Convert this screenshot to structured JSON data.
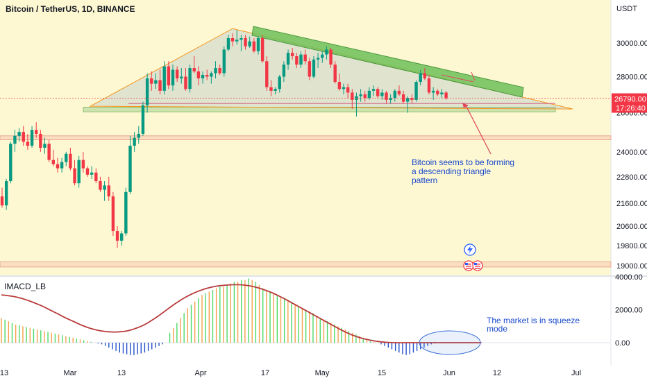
{
  "header": {
    "symbol": "Bitcoin / TetherUS, 1D, BINANCE",
    "currency": "USDT"
  },
  "price_badge": {
    "price": "26790.00",
    "countdown": "17:26:40",
    "color": "#f23645"
  },
  "indicator": {
    "name": "IMACD_LB"
  },
  "annotations": {
    "triangle_note": [
      "Bitcoin seems to be forming",
      "a descending triangle",
      "pattern"
    ],
    "squeeze_note": [
      "The market is in squeeze",
      "mode"
    ]
  },
  "colors": {
    "background_zone": "#fdf8d2",
    "up_candle": "#089981",
    "down_candle": "#f23645",
    "triangle_line": "#f7931a",
    "upper_trend_band": "#6fbf5a",
    "annotation_text": "#1848cc",
    "hist_green": "#4cd964",
    "hist_orange": "#f5a04a",
    "hist_blue": "#2150c8",
    "signal_line": "#b83a3a"
  },
  "chart_data": [
    {
      "type": "candlestick",
      "title": "Bitcoin / TetherUS, 1D, BINANCE",
      "ylabel": "USDT",
      "yscale": "log",
      "ylim": [
        18950,
        32500
      ],
      "x_ticks": [
        "13",
        "Mar",
        "13",
        "Apr",
        "17",
        "May",
        "15",
        "Jun",
        "12",
        "Jul"
      ],
      "y_ticks": [
        19000,
        19800,
        20600,
        21600,
        22800,
        24000,
        26000,
        28000,
        30000
      ],
      "y_tick_labels": [
        "19000.00",
        "19800.00",
        "20600.00",
        "21600.00",
        "22800.00",
        "24000.00",
        "26000.00",
        "28000.00",
        "30000.00"
      ],
      "last_price": 26790,
      "candles_ohlc": [
        [
          21900,
          22300,
          21400,
          21500
        ],
        [
          21500,
          22700,
          21300,
          22600
        ],
        [
          22600,
          24500,
          22500,
          24400
        ],
        [
          24400,
          25100,
          24000,
          24800
        ],
        [
          24800,
          25200,
          24500,
          25000
        ],
        [
          25000,
          25300,
          24300,
          24500
        ],
        [
          24500,
          24900,
          24100,
          24300
        ],
        [
          24300,
          25300,
          24200,
          25100
        ],
        [
          25100,
          25500,
          24700,
          24900
        ],
        [
          24900,
          25100,
          24000,
          24200
        ],
        [
          24200,
          24700,
          23900,
          24400
        ],
        [
          24400,
          24600,
          23500,
          23600
        ],
        [
          23600,
          24100,
          23300,
          23400
        ],
        [
          23400,
          23700,
          23000,
          23200
        ],
        [
          23200,
          23700,
          23000,
          23500
        ],
        [
          23500,
          24000,
          23300,
          23900
        ],
        [
          23900,
          24200,
          23100,
          23200
        ],
        [
          23200,
          23600,
          22400,
          22500
        ],
        [
          22500,
          23800,
          22300,
          23600
        ],
        [
          23600,
          24000,
          23000,
          23200
        ],
        [
          23200,
          23300,
          22800,
          22900
        ],
        [
          22900,
          23300,
          22700,
          23000
        ],
        [
          23000,
          23200,
          22500,
          22600
        ],
        [
          22600,
          22800,
          22100,
          22200
        ],
        [
          22200,
          22600,
          21700,
          22400
        ],
        [
          22400,
          22800,
          21700,
          21900
        ],
        [
          21900,
          22100,
          20200,
          20400
        ],
        [
          20400,
          20600,
          19700,
          20000
        ],
        [
          20000,
          20400,
          19800,
          20300
        ],
        [
          20300,
          22300,
          20200,
          22100
        ],
        [
          22100,
          24800,
          22000,
          24300
        ],
        [
          24300,
          25000,
          24000,
          24700
        ],
        [
          24700,
          25300,
          24400,
          24900
        ],
        [
          24900,
          26600,
          24800,
          26400
        ],
        [
          26400,
          28200,
          26000,
          27900
        ],
        [
          27900,
          28300,
          27200,
          27600
        ],
        [
          27600,
          28200,
          27300,
          27800
        ],
        [
          27800,
          28400,
          27000,
          27200
        ],
        [
          27200,
          28900,
          27000,
          28600
        ],
        [
          28600,
          28900,
          27300,
          27500
        ],
        [
          27500,
          28700,
          27200,
          28400
        ],
        [
          28400,
          28600,
          27700,
          27900
        ],
        [
          27900,
          28500,
          27600,
          28000
        ],
        [
          28000,
          28500,
          27200,
          27300
        ],
        [
          27300,
          28700,
          27100,
          28500
        ],
        [
          28500,
          29200,
          28200,
          28300
        ],
        [
          28300,
          28600,
          27500,
          27900
        ],
        [
          27900,
          28300,
          27600,
          28100
        ],
        [
          28100,
          28400,
          27800,
          28000
        ],
        [
          28000,
          28300,
          27600,
          28200
        ],
        [
          28200,
          28900,
          27900,
          28500
        ],
        [
          28500,
          28700,
          28100,
          28200
        ],
        [
          28200,
          29800,
          28000,
          29600
        ],
        [
          29600,
          30500,
          29500,
          30300
        ],
        [
          30300,
          30600,
          29800,
          30100
        ],
        [
          30100,
          30800,
          29900,
          30200
        ],
        [
          30200,
          30500,
          29500,
          30300
        ],
        [
          30300,
          30500,
          29600,
          29800
        ],
        [
          29800,
          30400,
          29700,
          30100
        ],
        [
          30100,
          30300,
          29400,
          29500
        ],
        [
          29500,
          30400,
          29300,
          30300
        ],
        [
          30300,
          30500,
          28800,
          28900
        ],
        [
          28900,
          29200,
          27200,
          27400
        ],
        [
          27400,
          27800,
          26900,
          27200
        ],
        [
          27200,
          27400,
          27000,
          27300
        ],
        [
          27300,
          28100,
          27100,
          28000
        ],
        [
          28000,
          28900,
          27700,
          28700
        ],
        [
          28700,
          29600,
          28400,
          29400
        ],
        [
          29400,
          29700,
          29000,
          29200
        ],
        [
          29200,
          29400,
          28500,
          28700
        ],
        [
          28700,
          29500,
          28500,
          29300
        ],
        [
          29300,
          29600,
          28700,
          28900
        ],
        [
          28900,
          29100,
          27800,
          28000
        ],
        [
          28000,
          29200,
          27900,
          29000
        ],
        [
          29000,
          29400,
          28500,
          29100
        ],
        [
          29100,
          29500,
          28800,
          29300
        ],
        [
          29300,
          29800,
          29000,
          29600
        ],
        [
          29600,
          29700,
          28500,
          28700
        ],
        [
          28700,
          28900,
          27600,
          27700
        ],
        [
          27700,
          28200,
          27200,
          27300
        ],
        [
          27300,
          27600,
          27000,
          27400
        ],
        [
          27400,
          27600,
          26800,
          27100
        ],
        [
          27100,
          27300,
          26200,
          26700
        ],
        [
          26700,
          27100,
          25800,
          26900
        ],
        [
          26900,
          27300,
          26600,
          27000
        ],
        [
          27000,
          27200,
          26600,
          26800
        ],
        [
          26800,
          27400,
          26700,
          27200
        ],
        [
          27200,
          27500,
          26900,
          27300
        ],
        [
          27300,
          27400,
          26800,
          26900
        ],
        [
          26900,
          27300,
          26700,
          27100
        ],
        [
          27100,
          27200,
          26500,
          26700
        ],
        [
          26700,
          27000,
          26500,
          26800
        ],
        [
          26800,
          27300,
          26600,
          27200
        ],
        [
          27200,
          27500,
          26900,
          27000
        ],
        [
          27000,
          27200,
          26500,
          26600
        ],
        [
          26600,
          26900,
          26000,
          26800
        ],
        [
          26800,
          27000,
          26500,
          26700
        ],
        [
          26700,
          27800,
          26600,
          27700
        ],
        [
          27700,
          28400,
          27500,
          28200
        ],
        [
          28200,
          28500,
          27800,
          27900
        ],
        [
          27900,
          28100,
          27000,
          27100
        ],
        [
          27100,
          27400,
          26700,
          27200
        ],
        [
          27200,
          27300,
          26900,
          27000
        ],
        [
          27000,
          27300,
          26800,
          27100
        ],
        [
          27100,
          27200,
          26700,
          26790
        ]
      ],
      "key_levels": [
        {
          "name": "support zone",
          "low": 26050,
          "high": 26300
        },
        {
          "name": "resistance zone",
          "low": 24600,
          "high": 24800
        },
        {
          "name": "lower zone",
          "low": 18950,
          "high": 19150
        }
      ],
      "descending_triangle": {
        "apex_price": 30900,
        "base_price": 26350
      }
    },
    {
      "type": "bar",
      "title": "IMACD_LB",
      "ylim": [
        -800,
        4000
      ],
      "y_ticks": [
        0,
        2000,
        4000
      ],
      "y_tick_labels": [
        "0.00",
        "2000.00",
        "4000.00"
      ],
      "histogram": [
        1500,
        1400,
        1300,
        1200,
        1100,
        1050,
        1000,
        950,
        900,
        850,
        800,
        750,
        700,
        650,
        600,
        550,
        500,
        450,
        400,
        350,
        300,
        250,
        200,
        150,
        100,
        50,
        0,
        -50,
        -100,
        -200,
        -300,
        -400,
        -500,
        -600,
        -650,
        -700,
        -750,
        -750,
        -700,
        -650,
        -600,
        -500,
        -400,
        -300,
        -200,
        -100,
        0,
        600,
        900,
        1200,
        1500,
        1800,
        2100,
        2300,
        2500,
        2700,
        2900,
        3000,
        3100,
        3200,
        3300,
        3400,
        3400,
        3500,
        3600,
        3700,
        3700,
        3800,
        3800,
        3900,
        3800,
        3700,
        3500,
        3300,
        3200,
        3100,
        3000,
        2900,
        2800,
        2700,
        2600,
        2400,
        2300,
        2200,
        2100,
        2000,
        1900,
        1800,
        1600,
        1500,
        1400,
        1300,
        1200,
        1100,
        1000,
        900,
        800,
        700,
        600,
        500,
        400,
        300,
        200,
        100,
        50,
        0,
        -100,
        -200,
        -300,
        -400,
        -500,
        -600,
        -700,
        -750,
        -700,
        -600,
        -500,
        -400,
        -300,
        -200,
        -100,
        -50,
        0,
        -20,
        -40,
        -30,
        -20,
        -10,
        0,
        -10,
        -20,
        -10
      ],
      "signal": [
        2900,
        2880,
        2850,
        2820,
        2780,
        2730,
        2670,
        2600,
        2520,
        2440,
        2350,
        2260,
        2160,
        2050,
        1940,
        1830,
        1720,
        1610,
        1500,
        1400,
        1300,
        1200,
        1100,
        1010,
        930,
        860,
        800,
        750,
        710,
        680,
        660,
        650,
        650,
        660,
        680,
        710,
        760,
        830,
        910,
        1000,
        1100,
        1220,
        1360,
        1500,
        1650,
        1810,
        1970,
        2130,
        2290,
        2440,
        2580,
        2710,
        2830,
        2940,
        3040,
        3130,
        3210,
        3280,
        3340,
        3390,
        3430,
        3460,
        3480,
        3500,
        3510,
        3520,
        3520,
        3510,
        3490,
        3460,
        3420,
        3370,
        3310,
        3240,
        3160,
        3080,
        2990,
        2890,
        2780,
        2670,
        2550,
        2430,
        2310,
        2190,
        2070,
        1950,
        1830,
        1710,
        1590,
        1470,
        1350,
        1230,
        1110,
        990,
        870,
        760,
        650,
        550,
        460,
        380,
        310,
        250,
        200,
        150,
        110,
        80,
        50,
        30,
        15,
        5,
        0,
        -5,
        -5,
        0,
        0,
        0,
        0,
        0,
        0,
        0,
        0,
        0,
        0,
        0,
        0,
        0,
        0,
        0,
        0,
        0,
        0,
        0,
        0,
        0,
        0
      ]
    }
  ]
}
